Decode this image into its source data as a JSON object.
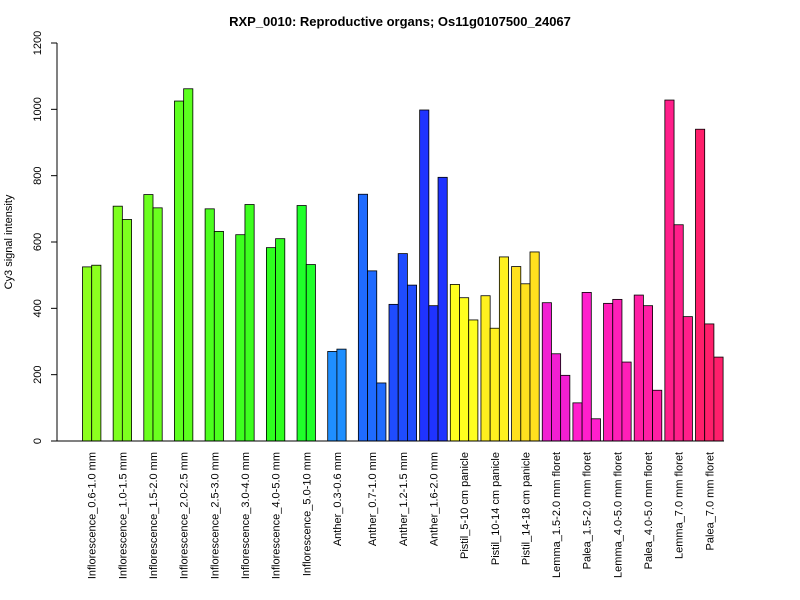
{
  "chart_data": {
    "type": "bar",
    "title": "RXP_0010: Reproductive organs; Os11g0107500_24067",
    "xlabel": "",
    "ylabel": "Cy3 signal intensity",
    "ylim": [
      0,
      1200
    ],
    "yticks": [
      0,
      200,
      400,
      600,
      800,
      1000,
      1200
    ],
    "grid": false,
    "legend": "none",
    "groups": [
      {
        "label": "Inflorescence_0.6-1.0 mm",
        "color": "#8cff1f",
        "values": [
          525,
          530
        ]
      },
      {
        "label": "Inflorescence_1.0-1.5 mm",
        "color": "#7dff1f",
        "values": [
          708,
          668
        ]
      },
      {
        "label": "Inflorescence_1.5-2.0 mm",
        "color": "#6bff1f",
        "values": [
          743,
          703
        ]
      },
      {
        "label": "Inflorescence_2.0-2.5 mm",
        "color": "#5cff1f",
        "values": [
          1025,
          1062
        ]
      },
      {
        "label": "Inflorescence_2.5-3.0 mm",
        "color": "#4cff1f",
        "values": [
          700,
          632
        ]
      },
      {
        "label": "Inflorescence_3.0-4.0 mm",
        "color": "#3dff1f",
        "values": [
          622,
          713
        ]
      },
      {
        "label": "Inflorescence_4.0-5.0 mm",
        "color": "#2eff1f",
        "values": [
          583,
          610
        ]
      },
      {
        "label": "Inflorescence_5.0-10 mm",
        "color": "#1fff2a",
        "values": [
          710,
          532
        ]
      },
      {
        "label": "Anther_0.3-0.6 mm",
        "color": "#1f8fff",
        "values": [
          270,
          277
        ]
      },
      {
        "label": "Anther_0.7-1.0 mm",
        "color": "#1f6bff",
        "values": [
          744,
          513,
          175
        ]
      },
      {
        "label": "Anther_1.2-1.5 mm",
        "color": "#1f4cff",
        "values": [
          412,
          565,
          470
        ]
      },
      {
        "label": "Anther_1.6-2.0 mm",
        "color": "#1f33ff",
        "values": [
          998,
          408,
          795
        ]
      },
      {
        "label": "Pistil_5-10 cm panicle",
        "color": "#ffff1f",
        "values": [
          472,
          432,
          365
        ]
      },
      {
        "label": "Pistil_10-14 cm panicle",
        "color": "#fff01f",
        "values": [
          438,
          340,
          555
        ]
      },
      {
        "label": "Pistil_14-18 cm panicle",
        "color": "#ffe01f",
        "values": [
          526,
          474,
          570
        ]
      },
      {
        "label": "Lemma_1.5-2.0 mm floret",
        "color": "#f21fd2",
        "values": [
          417,
          263,
          198
        ]
      },
      {
        "label": "Palea_1.5-2.0 mm floret",
        "color": "#ff1fcc",
        "values": [
          115,
          448,
          67
        ]
      },
      {
        "label": "Lemma_4.0-5.0 mm floret",
        "color": "#ff1fb8",
        "values": [
          415,
          427,
          238
        ]
      },
      {
        "label": "Palea_4.0-5.0 mm floret",
        "color": "#ff1fa4",
        "values": [
          440,
          408,
          153
        ]
      },
      {
        "label": "Lemma_7.0 mm floret",
        "color": "#ff1f8a",
        "values": [
          1028,
          652,
          375
        ]
      },
      {
        "label": "Palea_7.0 mm floret",
        "color": "#ff1f6b",
        "values": [
          940,
          353,
          253
        ]
      }
    ]
  }
}
